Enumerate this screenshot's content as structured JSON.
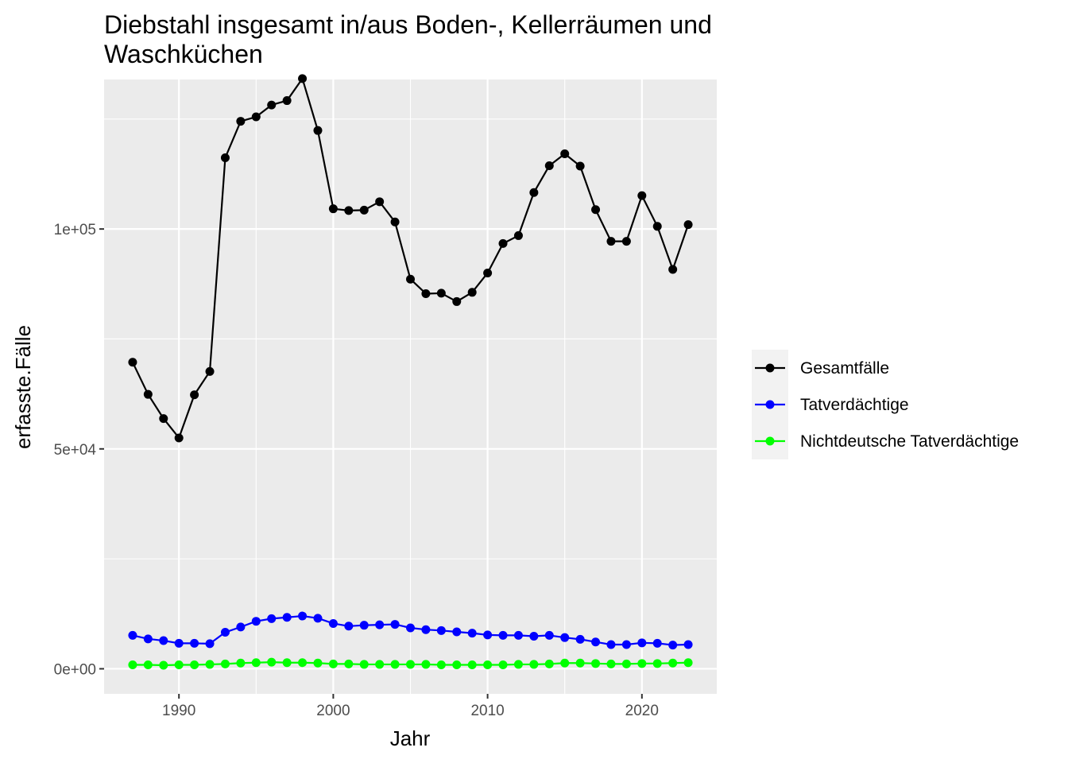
{
  "chart_data": {
    "type": "line",
    "title_lines": [
      "Diebstahl insgesamt in/aus Boden-, Kellerräumen und",
      "Waschküchen"
    ],
    "xlabel": "Jahr",
    "ylabel": "erfasste.Fälle",
    "x_ticks": [
      1990,
      2000,
      2010,
      2020
    ],
    "x_tick_labels": [
      "1990",
      "2000",
      "2010",
      "2020"
    ],
    "y_ticks": [
      0,
      50000,
      100000
    ],
    "y_tick_labels": [
      "0e+00",
      "5e+04",
      "1e+05"
    ],
    "xlim": [
      1985.15,
      2024.85
    ],
    "ylim": [
      -5700,
      134000
    ],
    "grid": true,
    "legend_position": "right",
    "x": [
      1987,
      1988,
      1989,
      1990,
      1991,
      1992,
      1993,
      1994,
      1995,
      1996,
      1997,
      1998,
      1999,
      2000,
      2001,
      2002,
      2003,
      2004,
      2005,
      2006,
      2007,
      2008,
      2009,
      2010,
      2011,
      2012,
      2013,
      2014,
      2015,
      2016,
      2017,
      2018,
      2019,
      2020,
      2021,
      2022,
      2023
    ],
    "series": [
      {
        "name": "Gesamtfälle",
        "color": "#000000",
        "values": [
          69700,
          62400,
          56900,
          52500,
          62300,
          67600,
          116200,
          124500,
          125500,
          128200,
          129200,
          134200,
          122400,
          104600,
          104200,
          104300,
          106200,
          101600,
          88600,
          85300,
          85400,
          83500,
          85600,
          90000,
          96700,
          98500,
          108300,
          114400,
          117100,
          114300,
          104400,
          97200,
          97200,
          107600,
          100600,
          90800,
          101000
        ]
      },
      {
        "name": "Tatverdächtige",
        "color": "#0000ff",
        "values": [
          7600,
          6800,
          6400,
          5800,
          5800,
          5700,
          8300,
          9500,
          10800,
          11400,
          11700,
          12000,
          11500,
          10300,
          9700,
          9900,
          10000,
          10100,
          9300,
          8900,
          8700,
          8400,
          8100,
          7700,
          7600,
          7600,
          7400,
          7600,
          7100,
          6700,
          6100,
          5500,
          5500,
          5900,
          5800,
          5400,
          5500
        ]
      },
      {
        "name": "Nichtdeutsche Tatverdächtige",
        "color": "#00ff00",
        "values": [
          900,
          900,
          800,
          900,
          900,
          1000,
          1100,
          1300,
          1400,
          1500,
          1400,
          1400,
          1300,
          1100,
          1100,
          1000,
          1000,
          1000,
          1000,
          1000,
          900,
          900,
          900,
          900,
          900,
          1000,
          1000,
          1100,
          1300,
          1300,
          1200,
          1100,
          1100,
          1200,
          1200,
          1300,
          1400
        ]
      }
    ]
  }
}
